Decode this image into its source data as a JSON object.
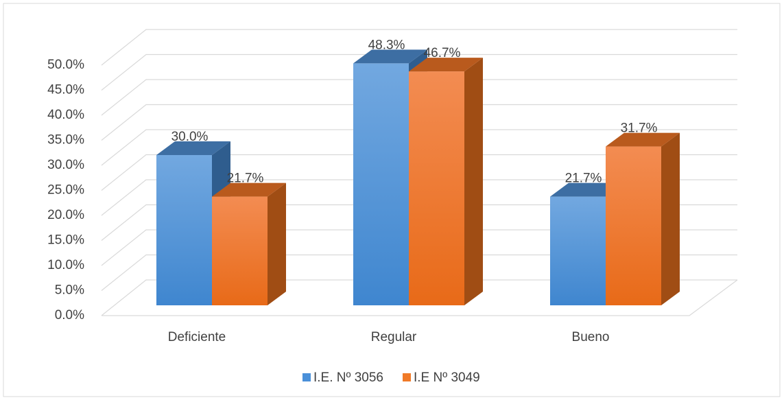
{
  "chart_data": {
    "type": "bar3d",
    "categories": [
      "Deficiente",
      "Regular",
      "Bueno"
    ],
    "series": [
      {
        "name": "I.E. Nº 3056",
        "color": "#4a90d9",
        "values": [
          30.0,
          48.3,
          21.7
        ],
        "value_labels": [
          "30.0%",
          "48.3%",
          "21.7%"
        ]
      },
      {
        "name": "I.E Nº 3049",
        "color": "#f07a28",
        "values": [
          21.7,
          46.7,
          31.7
        ],
        "value_labels": [
          "21.7%",
          "46.7%",
          "31.7%"
        ]
      }
    ],
    "ylim": [
      0,
      50
    ],
    "yticks": [
      {
        "value": 0,
        "label": "0.0%"
      },
      {
        "value": 5,
        "label": "5.0%"
      },
      {
        "value": 10,
        "label": "10.0%"
      },
      {
        "value": 15,
        "label": "15.0%"
      },
      {
        "value": 20,
        "label": "20.0%"
      },
      {
        "value": 25,
        "label": "25.0%"
      },
      {
        "value": 30,
        "label": "30.0%"
      },
      {
        "value": 35,
        "label": "35.0%"
      },
      {
        "value": 40,
        "label": "40.0%"
      },
      {
        "value": 45,
        "label": "45.0%"
      },
      {
        "value": 50,
        "label": "50.0%"
      }
    ],
    "grid": true,
    "legend": "bottom"
  }
}
